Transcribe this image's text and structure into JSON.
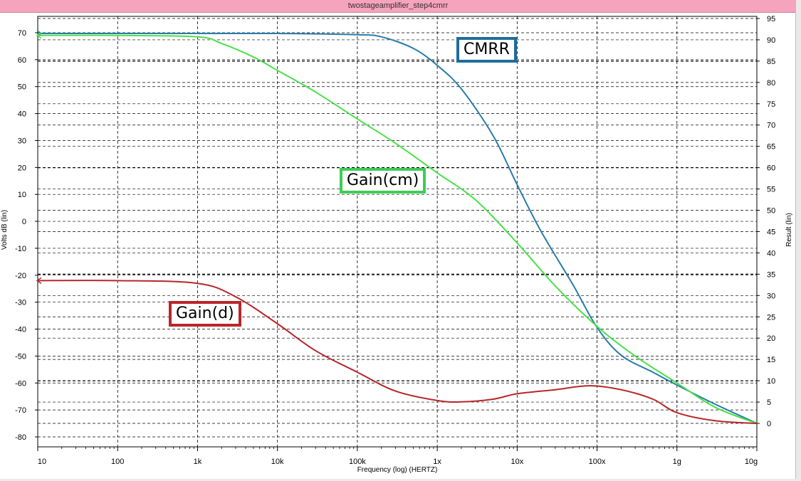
{
  "window": {
    "title": "twostageamplifier_step4cmrr"
  },
  "chart_data": {
    "type": "line",
    "title": "",
    "xlabel": "Frequency (log) (HERTZ)",
    "ylabel_left": "Volts dB (lin)",
    "ylabel_right": "Result (lin)",
    "x_scale": "log",
    "xlim": [
      10,
      10000000000
    ],
    "ylim_left": [
      -80,
      70
    ],
    "ylim_right": [
      0,
      95
    ],
    "x_tick_labels": [
      "10",
      "100",
      "1k",
      "10k",
      "100k",
      "1x",
      "10x",
      "100x",
      "1g",
      "10g"
    ],
    "y_left_ticks": [
      70,
      60,
      50,
      40,
      30,
      20,
      10,
      0,
      -10,
      -20,
      -30,
      -40,
      -50,
      -60,
      -70,
      -80
    ],
    "y_right_ticks": [
      95,
      90,
      85,
      80,
      75,
      70,
      65,
      60,
      55,
      50,
      45,
      40,
      35,
      30,
      25,
      20,
      15,
      10,
      5,
      0
    ],
    "grid": true,
    "series": [
      {
        "name": "CMRR",
        "axis": "right",
        "color": "#2a7ca8",
        "x": [
          10,
          100,
          1000,
          10000,
          100000,
          200000,
          500000,
          1000000,
          2000000,
          5000000,
          10000000,
          20000000,
          50000000,
          100000000,
          200000000,
          500000000,
          1000000000,
          3000000000,
          10000000000
        ],
        "y": [
          91.5,
          91.5,
          91.5,
          91.5,
          91.2,
          90.7,
          88.0,
          84.0,
          78.5,
          67.5,
          56.0,
          45.0,
          32.5,
          22.5,
          16.0,
          12.0,
          9.0,
          4.5,
          0.0
        ]
      },
      {
        "name": "Gain(cm)",
        "axis": "left",
        "color": "#4ae04a",
        "x": [
          10,
          100,
          1000,
          2000,
          5000,
          10000,
          30000,
          100000,
          300000,
          1000000,
          3000000,
          10000000,
          30000000,
          100000000,
          300000000,
          1000000000,
          3000000000,
          10000000000
        ],
        "y": [
          69,
          69,
          68.5,
          66,
          61,
          56,
          48,
          38,
          29,
          18,
          8,
          -8,
          -24,
          -39,
          -50,
          -60,
          -69,
          -75
        ]
      },
      {
        "name": "Gain(d)",
        "axis": "left",
        "color": "#b8262a",
        "x": [
          10,
          100,
          1000,
          3000,
          10000,
          30000,
          100000,
          300000,
          1000000,
          2000000,
          5000000,
          10000000,
          30000000,
          80000000,
          200000000,
          500000000,
          1000000000,
          3000000000,
          10000000000
        ],
        "y": [
          -22,
          -22,
          -23,
          -28,
          -38,
          -48,
          -56,
          -63,
          -66.5,
          -67,
          -66,
          -64,
          -62.5,
          -61,
          -62.5,
          -66,
          -71,
          -74,
          -75
        ]
      }
    ],
    "annotations": [
      "CMRR",
      "Gain(cm)",
      "Gain(d)"
    ]
  }
}
